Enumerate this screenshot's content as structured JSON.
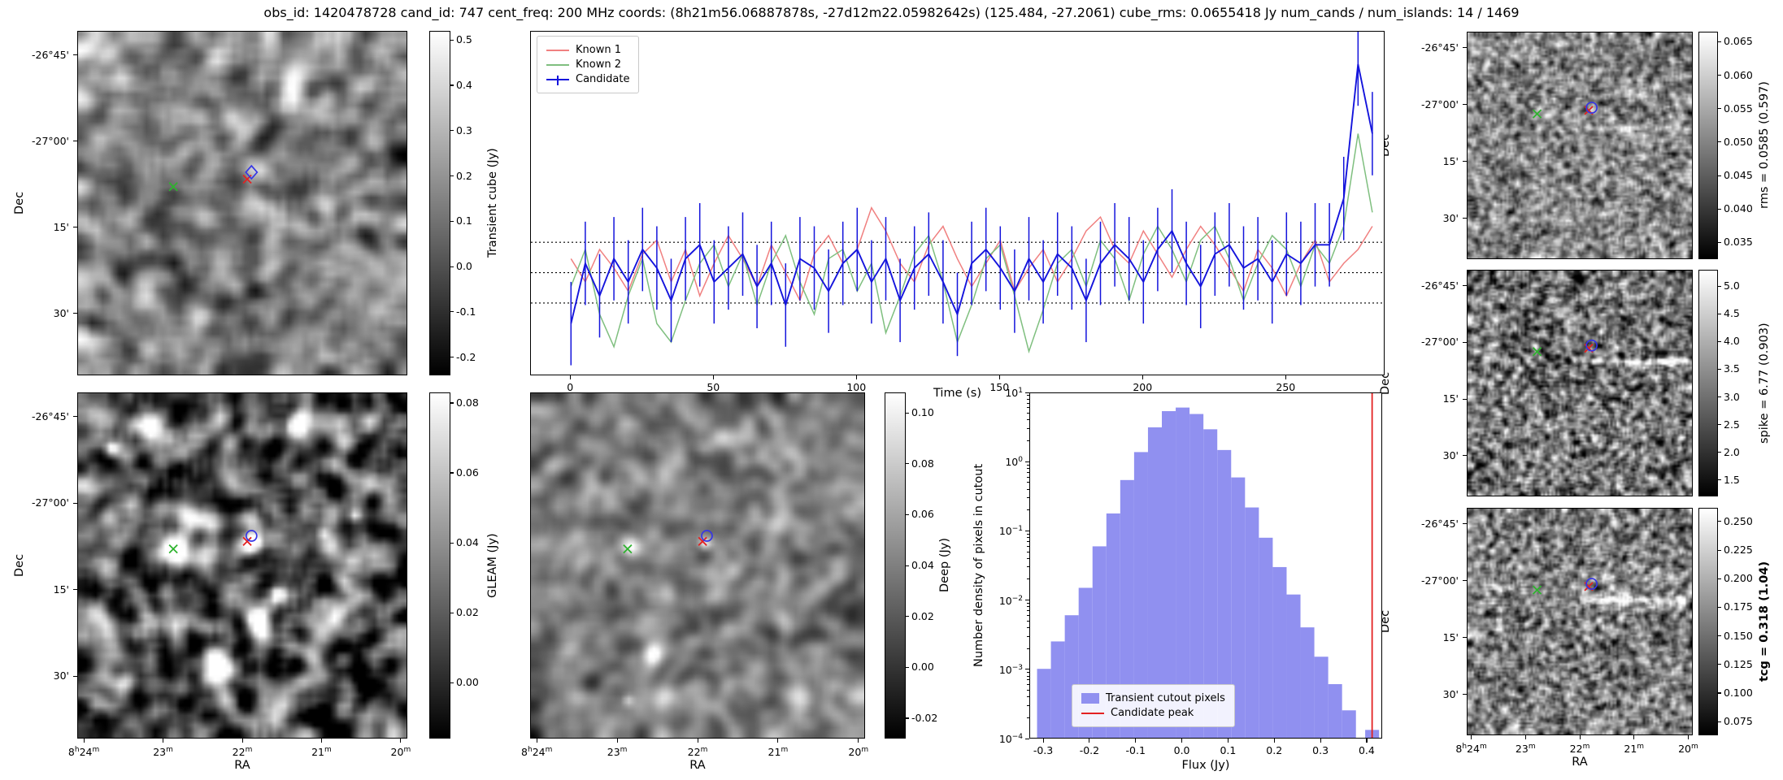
{
  "title": "obs_id: 1420478728 cand_id: 747 cent_freq: 200 MHz coords: (8h21m56.06887878s, -27d12m22.05982642s) (125.484, -27.2061) cube_rms: 0.0655418 Jy num_cands / num_islands: 14 / 1469",
  "axes": {
    "dec_label": "Dec",
    "ra_label": "RA",
    "dec_ticks": [
      "-26°45'",
      "-27°00'",
      "15'",
      "30'"
    ],
    "ra_ticks": [
      "8h24m",
      "23m",
      "22m",
      "21m",
      "20m"
    ]
  },
  "colorbars": {
    "transient": {
      "label": "Transient cube (Jy)",
      "ticks": [
        "0.5",
        "0.4",
        "0.3",
        "0.2",
        "0.1",
        "0.0",
        "-0.1",
        "-0.2"
      ],
      "vmin": -0.24,
      "vmax": 0.52
    },
    "gleam": {
      "label": "GLEAM (Jy)",
      "ticks": [
        "0.08",
        "0.06",
        "0.04",
        "0.02",
        "0.00"
      ],
      "vmin": -0.016,
      "vmax": 0.083
    },
    "deep": {
      "label": "Deep (Jy)",
      "ticks": [
        "0.10",
        "0.08",
        "0.06",
        "0.04",
        "0.02",
        "0.00",
        "-0.02"
      ],
      "vmin": -0.028,
      "vmax": 0.108
    },
    "rms": {
      "label": "rms = 0.0585 (0.597)",
      "ticks": [
        "0.065",
        "0.060",
        "0.055",
        "0.050",
        "0.045",
        "0.040",
        "0.035"
      ],
      "vmin": 0.0325,
      "vmax": 0.0665
    },
    "spike": {
      "label": "spike = 6.77 (0.903)",
      "ticks": [
        "5.0",
        "4.5",
        "4.0",
        "3.5",
        "3.0",
        "2.5",
        "2.0",
        "1.5"
      ],
      "vmin": 1.2,
      "vmax": 5.3
    },
    "tcg": {
      "label": "tcg = 0.318 (1.04)",
      "ticks": [
        "0.250",
        "0.225",
        "0.200",
        "0.175",
        "0.150",
        "0.125",
        "0.100",
        "0.075"
      ],
      "vmin": 0.063,
      "vmax": 0.262,
      "bold": true
    }
  },
  "chart_data": [
    {
      "type": "line",
      "xlabel": "Time (s)",
      "ylabel": "",
      "xlim": [
        -14,
        284
      ],
      "ylim": [
        -0.22,
        0.52
      ],
      "xticks": [
        0,
        50,
        100,
        150,
        200,
        250
      ],
      "hlines": [
        0.0655418,
        0,
        -0.0655418
      ],
      "legend_position": "upper left",
      "x": [
        0,
        5,
        10,
        15,
        20,
        25,
        30,
        35,
        40,
        45,
        50,
        55,
        60,
        65,
        70,
        75,
        80,
        85,
        90,
        95,
        100,
        105,
        110,
        115,
        120,
        125,
        130,
        135,
        140,
        145,
        150,
        155,
        160,
        165,
        170,
        175,
        180,
        185,
        190,
        195,
        200,
        205,
        210,
        215,
        220,
        225,
        230,
        235,
        240,
        245,
        250,
        255,
        260,
        265,
        270,
        275,
        280
      ],
      "series": [
        {
          "name": "Known 1",
          "color": "#f08080",
          "values": [
            0.03,
            -0.02,
            0.05,
            0.01,
            -0.04,
            0.04,
            0.07,
            -0.02,
            0.05,
            -0.05,
            0.02,
            0.08,
            0.03,
            -0.03,
            0.06,
            0.0,
            -0.06,
            0.04,
            0.08,
            0.02,
            0.05,
            0.14,
            0.09,
            0.02,
            -0.02,
            0.06,
            0.1,
            0.03,
            -0.03,
            0.02,
            0.07,
            -0.04,
            0.01,
            0.05,
            -0.02,
            0.03,
            0.09,
            0.12,
            0.05,
            0.02,
            0.09,
            0.04,
            -0.01,
            0.05,
            0.1,
            0.06,
            0.01,
            -0.04,
            0.05,
            0.01,
            -0.05,
            0.02,
            0.07,
            -0.02,
            0.02,
            0.05,
            0.1
          ]
        },
        {
          "name": "Known 2",
          "color": "#7fbf7f",
          "values": [
            -0.03,
            0.05,
            -0.09,
            -0.16,
            -0.05,
            0.03,
            -0.11,
            -0.15,
            -0.06,
            0.02,
            0.06,
            -0.03,
            0.04,
            -0.07,
            0.02,
            0.08,
            -0.02,
            -0.09,
            0.03,
            0.05,
            -0.04,
            0.02,
            -0.13,
            -0.05,
            0.04,
            0.08,
            -0.02,
            -0.15,
            -0.07,
            0.03,
            0.06,
            -0.05,
            -0.17,
            -0.08,
            0.02,
            0.05,
            -0.03,
            0.07,
            0.03,
            -0.06,
            0.04,
            0.1,
            0.05,
            -0.02,
            0.07,
            0.1,
            0.03,
            -0.06,
            0.02,
            0.08,
            0.05,
            -0.03,
            0.06,
            0.02,
            0.1,
            0.3,
            0.13
          ]
        },
        {
          "name": "Candidate",
          "color": "#1414dc",
          "yerr": 0.09,
          "values": [
            -0.11,
            0.02,
            -0.05,
            0.03,
            -0.02,
            0.05,
            0.01,
            -0.06,
            0.03,
            0.06,
            -0.02,
            0.01,
            0.04,
            -0.03,
            0.02,
            -0.07,
            0.03,
            0.01,
            -0.04,
            0.02,
            0.05,
            -0.02,
            0.03,
            -0.06,
            0.01,
            0.04,
            -0.02,
            -0.09,
            0.02,
            0.05,
            0.01,
            -0.04,
            0.03,
            -0.02,
            0.04,
            0.01,
            -0.06,
            0.02,
            0.06,
            0.03,
            -0.02,
            0.05,
            0.09,
            0.02,
            -0.03,
            0.04,
            0.06,
            0.01,
            0.03,
            -0.02,
            0.04,
            0.02,
            0.06,
            0.06,
            0.16,
            0.45,
            0.3
          ]
        }
      ]
    },
    {
      "type": "bar",
      "xlabel": "Flux (Jy)",
      "ylabel": "Number density of pixels in cutout",
      "xlim": [
        -0.33,
        0.43
      ],
      "ylog": true,
      "ylim_exp": [
        -4,
        1
      ],
      "xticks": [
        -0.3,
        -0.2,
        -0.1,
        0.0,
        0.1,
        0.2,
        0.3,
        0.4
      ],
      "bin_width": 0.03,
      "bin_left_edges": [
        -0.315,
        -0.285,
        -0.255,
        -0.225,
        -0.195,
        -0.165,
        -0.135,
        -0.105,
        -0.075,
        -0.045,
        -0.015,
        0.015,
        0.045,
        0.075,
        0.105,
        0.135,
        0.165,
        0.195,
        0.225,
        0.255,
        0.285,
        0.315,
        0.345,
        0.395
      ],
      "values": [
        0.001,
        0.0025,
        0.006,
        0.015,
        0.06,
        0.18,
        0.55,
        1.4,
        3.2,
        5.5,
        6.2,
        5.0,
        3.0,
        1.5,
        0.6,
        0.22,
        0.08,
        0.03,
        0.012,
        0.004,
        0.0015,
        0.0006,
        0.00025,
        0.00013
      ],
      "fill_color": "#9090f0",
      "vline": {
        "x": 0.41,
        "color": "#e32222",
        "label": "Candidate peak"
      },
      "legend": [
        "Transient cutout pixels",
        "Candidate peak"
      ]
    }
  ],
  "marker_colors": {
    "known_source": "#2eb32e",
    "candidate_cross": "#e32222",
    "candidate_ring": "#3535e6"
  }
}
